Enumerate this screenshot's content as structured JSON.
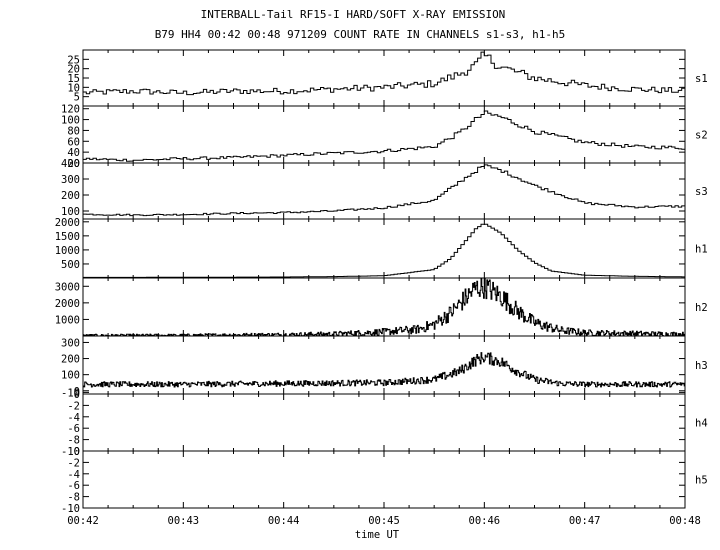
{
  "chart_data": {
    "type": "line",
    "style": "step",
    "title": "INTERBALL-Tail RF15-I HARD/SOFT X-RAY EMISSION",
    "subtitle": "B79 HH4 00:42 00:48 971209  COUNT RATE IN CHANNELS s1-s3, h1-h5",
    "xlabel": "time UT",
    "x_ticks": [
      "00:42",
      "00:43",
      "00:44",
      "00:45",
      "00:46",
      "00:47",
      "00:48"
    ],
    "x_range": [
      "00:42",
      "00:48"
    ],
    "color": "#000000",
    "series": [
      {
        "name": "s1",
        "yticks": [
          5,
          10,
          15,
          20,
          25
        ],
        "ylim": [
          0,
          30
        ],
        "x": [
          "00:42:00",
          "00:42:30",
          "00:43:00",
          "00:43:30",
          "00:44:00",
          "00:44:30",
          "00:45:00",
          "00:45:30",
          "00:45:45",
          "00:45:55",
          "00:46:00",
          "00:46:10",
          "00:46:30",
          "00:47:00",
          "00:47:30",
          "00:48:00"
        ],
        "values": [
          7,
          8,
          7,
          8,
          8,
          9,
          10,
          12,
          17,
          22,
          27,
          21,
          15,
          11,
          9,
          8
        ],
        "noise": 2.5
      },
      {
        "name": "s2",
        "yticks": [
          20,
          40,
          60,
          80,
          100,
          120
        ],
        "ylim": [
          20,
          125
        ],
        "x": [
          "00:42:00",
          "00:42:30",
          "00:43:00",
          "00:43:30",
          "00:44:00",
          "00:44:30",
          "00:45:00",
          "00:45:30",
          "00:45:45",
          "00:45:55",
          "00:46:00",
          "00:46:10",
          "00:46:30",
          "00:47:00",
          "00:47:30",
          "00:48:00"
        ],
        "values": [
          28,
          25,
          28,
          30,
          34,
          38,
          42,
          50,
          75,
          100,
          112,
          105,
          78,
          58,
          50,
          48
        ],
        "noise": 4
      },
      {
        "name": "s3",
        "yticks": [
          100,
          200,
          300,
          400
        ],
        "ylim": [
          50,
          400
        ],
        "x": [
          "00:42:00",
          "00:42:30",
          "00:43:00",
          "00:43:30",
          "00:44:00",
          "00:44:30",
          "00:45:00",
          "00:45:30",
          "00:45:45",
          "00:45:55",
          "00:46:00",
          "00:46:10",
          "00:46:30",
          "00:47:00",
          "00:47:30",
          "00:48:00"
        ],
        "values": [
          80,
          75,
          78,
          85,
          90,
          100,
          120,
          165,
          280,
          350,
          385,
          355,
          260,
          150,
          125,
          130
        ],
        "noise": 8
      },
      {
        "name": "h1",
        "yticks": [
          500,
          1000,
          1500,
          2000
        ],
        "ylim": [
          0,
          2100
        ],
        "x": [
          "00:42:00",
          "00:43:00",
          "00:44:00",
          "00:44:30",
          "00:45:00",
          "00:45:30",
          "00:45:40",
          "00:45:50",
          "00:45:55",
          "00:46:00",
          "00:46:10",
          "00:46:20",
          "00:46:30",
          "00:46:40",
          "00:47:00",
          "00:47:30",
          "00:48:00"
        ],
        "values": [
          20,
          25,
          35,
          50,
          80,
          300,
          700,
          1400,
          1750,
          1950,
          1600,
          1000,
          550,
          250,
          100,
          60,
          40
        ],
        "noise": 0
      },
      {
        "name": "h2",
        "yticks": [
          1000,
          2000,
          3000
        ],
        "ylim": [
          0,
          3500
        ],
        "x": [
          "00:42:00",
          "00:43:00",
          "00:44:00",
          "00:44:30",
          "00:45:00",
          "00:45:20",
          "00:45:30",
          "00:45:40",
          "00:45:50",
          "00:45:55",
          "00:46:00",
          "00:46:10",
          "00:46:20",
          "00:46:30",
          "00:46:45",
          "00:47:00",
          "00:48:00"
        ],
        "values": [
          30,
          40,
          80,
          120,
          250,
          400,
          700,
          1400,
          2400,
          2900,
          3000,
          2400,
          1500,
          800,
          350,
          200,
          100
        ],
        "noise": 120
      },
      {
        "name": "h3",
        "yticks": [
          -10,
          0,
          100,
          200,
          300
        ],
        "ylim": [
          -20,
          340
        ],
        "x": [
          "00:42:00",
          "00:43:00",
          "00:44:00",
          "00:45:00",
          "00:45:30",
          "00:45:45",
          "00:45:55",
          "00:46:00",
          "00:46:10",
          "00:46:20",
          "00:46:30",
          "00:46:45",
          "00:47:00",
          "00:48:00"
        ],
        "values": [
          40,
          40,
          45,
          50,
          70,
          120,
          190,
          210,
          180,
          120,
          70,
          45,
          40,
          40
        ],
        "noise": 28
      },
      {
        "name": "h4",
        "yticks": [
          -10,
          -8,
          -6,
          -4,
          -2,
          0
        ],
        "ylim": [
          -10,
          0
        ],
        "x": [],
        "values": []
      },
      {
        "name": "h5",
        "yticks": [
          -10,
          -8,
          -6,
          -4,
          -2,
          0
        ],
        "ylim": [
          -10,
          0
        ],
        "x": [],
        "values": []
      }
    ]
  }
}
